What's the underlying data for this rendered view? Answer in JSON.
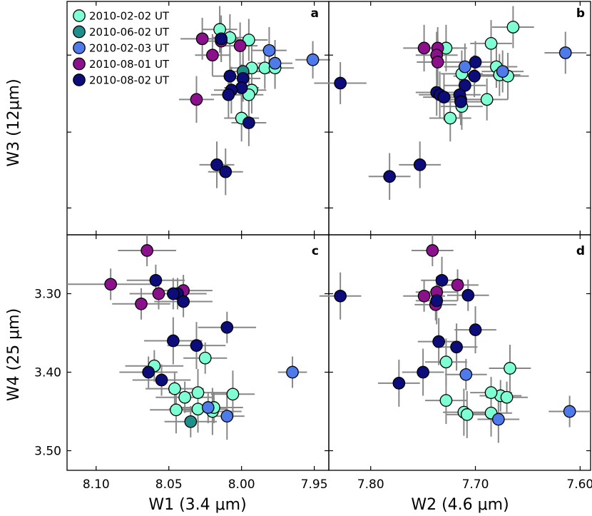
{
  "colors": {
    "2010-02-02 UT": "#7fffd4",
    "2010-06-02 UT": "#1f8f8c",
    "2010-02-03 UT": "#4f7bea",
    "2010-08-01 UT": "#8b108b",
    "2010-08-02 UT": "#0c0c7a",
    "errorbar": "#888888"
  },
  "legend": [
    "2010-02-02 UT",
    "2010-06-02 UT",
    "2010-02-03 UT",
    "2010-08-01 UT",
    "2010-08-02 UT"
  ],
  "labels": {
    "ylabel_top": "W3 (12μm)",
    "ylabel_bottom": "W4 (25 μm)",
    "xlabel_left": "W1 (3.4 μm)",
    "xlabel_right": "W2 (4.6 μm)"
  },
  "panels": [
    "a",
    "b",
    "c",
    "d"
  ],
  "chart_data": [
    {
      "panel": "a",
      "type": "scatter",
      "x_var": "W1",
      "y_var": "W3",
      "xlim": [
        8.12,
        7.94
      ],
      "xticks": [],
      "yticks": [],
      "ylim": [
        0,
        1
      ],
      "series": [
        {
          "name": "2010-02-02 UT",
          "points": [
            [
              8.015,
              0.88
            ],
            [
              8.008,
              0.845
            ],
            [
              7.995,
              0.835
            ],
            [
              7.993,
              0.715
            ],
            [
              7.984,
              0.715
            ],
            [
              7.977,
              0.715
            ],
            [
              7.993,
              0.62
            ],
            [
              7.995,
              0.6
            ],
            [
              8.0,
              0.5
            ]
          ],
          "xerr": [
            0.012,
            0.012,
            0.013,
            0.015,
            0.012,
            0.013,
            0.01,
            0.01,
            0.012
          ],
          "yerr": [
            0.1,
            0.1,
            0.09,
            0.1,
            0.09,
            0.09,
            0.1,
            0.1,
            0.1
          ]
        },
        {
          "name": "2010-06-02 UT",
          "points": [
            [
              7.999,
              0.7
            ]
          ],
          "xerr": [
            0.012
          ],
          "yerr": [
            0.09
          ]
        },
        {
          "name": "2010-02-03 UT",
          "points": [
            [
              7.981,
              0.79
            ],
            [
              7.977,
              0.735
            ],
            [
              7.951,
              0.75
            ]
          ],
          "xerr": [
            0.012,
            0.012,
            0.012
          ],
          "yerr": [
            0.1,
            0.1,
            0.08
          ]
        },
        {
          "name": "2010-08-01 UT",
          "points": [
            [
              8.027,
              0.84
            ],
            [
              8.014,
              0.83
            ],
            [
              8.001,
              0.81
            ],
            [
              8.02,
              0.77
            ],
            [
              8.031,
              0.58
            ]
          ],
          "xerr": [
            0.015,
            0.012,
            0.012,
            0.012,
            0.012
          ],
          "yerr": [
            0.09,
            0.09,
            0.1,
            0.09,
            0.1
          ]
        },
        {
          "name": "2010-08-02 UT",
          "points": [
            [
              8.014,
              0.84
            ],
            [
              8.008,
              0.68
            ],
            [
              7.999,
              0.67
            ],
            [
              8.0,
              0.63
            ],
            [
              8.007,
              0.62
            ],
            [
              8.009,
              0.6
            ],
            [
              7.995,
              0.48
            ],
            [
              8.017,
              0.3
            ],
            [
              8.011,
              0.27
            ]
          ],
          "xerr": [
            0.012,
            0.012,
            0.012,
            0.012,
            0.012,
            0.012,
            0.012,
            0.012,
            0.012
          ],
          "yerr": [
            0.1,
            0.1,
            0.1,
            0.1,
            0.1,
            0.1,
            0.1,
            0.1,
            0.1
          ]
        }
      ]
    },
    {
      "panel": "b",
      "type": "scatter",
      "x_var": "W2",
      "y_var": "W3",
      "xlim": [
        7.84,
        7.59
      ],
      "xticks": [],
      "yticks": [],
      "ylim": [
        0,
        1
      ],
      "series": [
        {
          "name": "2010-02-02 UT",
          "points": [
            [
              7.664,
              0.89
            ],
            [
              7.685,
              0.82
            ],
            [
              7.728,
              0.8
            ],
            [
              7.68,
              0.72
            ],
            [
              7.713,
              0.69
            ],
            [
              7.677,
              0.685
            ],
            [
              7.669,
              0.68
            ],
            [
              7.689,
              0.58
            ],
            [
              7.713,
              0.55
            ],
            [
              7.724,
              0.5
            ]
          ],
          "xerr": [
            0.02,
            0.02,
            0.02,
            0.02,
            0.02,
            0.02,
            0.02,
            0.02,
            0.02,
            0.02
          ],
          "yerr": [
            0.09,
            0.1,
            0.1,
            0.09,
            0.1,
            0.09,
            0.1,
            0.09,
            0.1,
            0.1
          ]
        },
        {
          "name": "2010-02-03 UT",
          "points": [
            [
              7.614,
              0.78
            ],
            [
              7.71,
              0.72
            ],
            [
              7.674,
              0.7
            ]
          ],
          "xerr": [
            0.02,
            0.02,
            0.02
          ],
          "yerr": [
            0.09,
            0.1,
            0.09
          ]
        },
        {
          "name": "2010-08-01 UT",
          "points": [
            [
              7.749,
              0.8
            ],
            [
              7.736,
              0.8
            ],
            [
              7.737,
              0.77
            ],
            [
              7.736,
              0.74
            ],
            [
              7.714,
              0.58
            ]
          ],
          "xerr": [
            0.02,
            0.02,
            0.02,
            0.02,
            0.02
          ],
          "yerr": [
            0.1,
            0.09,
            0.1,
            0.1,
            0.09
          ]
        },
        {
          "name": "2010-08-02 UT",
          "points": [
            [
              7.7,
              0.74
            ],
            [
              7.701,
              0.68
            ],
            [
              7.829,
              0.65
            ],
            [
              7.71,
              0.64
            ],
            [
              7.737,
              0.61
            ],
            [
              7.734,
              0.6
            ],
            [
              7.73,
              0.59
            ],
            [
              7.715,
              0.6
            ],
            [
              7.714,
              0.57
            ],
            [
              7.753,
              0.3
            ],
            [
              7.782,
              0.25
            ]
          ],
          "xerr": [
            0.02,
            0.02,
            0.025,
            0.02,
            0.02,
            0.02,
            0.02,
            0.02,
            0.02,
            0.02,
            0.02
          ],
          "yerr": [
            0.09,
            0.09,
            0.09,
            0.1,
            0.1,
            0.1,
            0.1,
            0.1,
            0.1,
            0.1,
            0.1
          ]
        }
      ]
    },
    {
      "panel": "c",
      "type": "scatter",
      "x_var": "W1",
      "y_var": "W4",
      "xlim": [
        8.12,
        7.94
      ],
      "xticks": [
        "8.10",
        "8.05",
        "8.00",
        "7.95"
      ],
      "yticks": [
        "3.30",
        "3.40",
        "3.50"
      ],
      "ylim": [
        3.525,
        3.225
      ],
      "series": [
        {
          "name": "2010-02-02 UT",
          "points": [
            [
              8.025,
              3.382
            ],
            [
              8.06,
              3.392
            ],
            [
              8.046,
              3.421
            ],
            [
              8.03,
              3.426
            ],
            [
              8.006,
              3.428
            ],
            [
              8.039,
              3.432
            ],
            [
              8.045,
              3.448
            ],
            [
              8.03,
              3.447
            ],
            [
              8.02,
              3.45
            ],
            [
              8.019,
              3.445
            ]
          ],
          "xerr": [
            0.015,
            0.02,
            0.02,
            0.02,
            0.015,
            0.02,
            0.018,
            0.02,
            0.02,
            0.02
          ],
          "yerr": [
            0.02,
            0.02,
            0.02,
            0.03,
            0.03,
            0.02,
            0.03,
            0.03,
            0.03,
            0.02
          ]
        },
        {
          "name": "2010-06-02 UT",
          "points": [
            [
              8.035,
              3.463
            ]
          ],
          "xerr": [
            0.018
          ],
          "yerr": [
            0.02
          ]
        },
        {
          "name": "2010-02-03 UT",
          "points": [
            [
              7.965,
              3.4
            ],
            [
              8.023,
              3.445
            ],
            [
              8.01,
              3.456
            ]
          ],
          "xerr": [
            0.01,
            0.02,
            0.012
          ],
          "yerr": [
            0.02,
            0.02,
            0.03
          ]
        },
        {
          "name": "2010-08-01 UT",
          "points": [
            [
              8.065,
              3.245
            ],
            [
              8.09,
              3.288
            ],
            [
              8.069,
              3.313
            ],
            [
              8.057,
              3.3
            ],
            [
              8.04,
              3.296
            ]
          ],
          "xerr": [
            0.02,
            0.03,
            0.02,
            0.02,
            0.02
          ],
          "yerr": [
            0.02,
            0.02,
            0.02,
            0.02,
            0.02
          ]
        },
        {
          "name": "2010-08-02 UT",
          "points": [
            [
              8.059,
              3.283
            ],
            [
              8.044,
              3.3
            ],
            [
              8.047,
              3.3
            ],
            [
              8.04,
              3.31
            ],
            [
              8.01,
              3.343
            ],
            [
              8.047,
              3.36
            ],
            [
              8.031,
              3.366
            ],
            [
              8.064,
              3.4
            ],
            [
              8.055,
              3.41
            ]
          ],
          "xerr": [
            0.02,
            0.02,
            0.02,
            0.02,
            0.02,
            0.02,
            0.02,
            0.02,
            0.02
          ],
          "yerr": [
            0.02,
            0.02,
            0.02,
            0.02,
            0.02,
            0.03,
            0.03,
            0.02,
            0.02
          ]
        }
      ]
    },
    {
      "panel": "d",
      "type": "scatter",
      "x_var": "W2",
      "y_var": "W4",
      "xlim": [
        7.84,
        7.59
      ],
      "xticks": [
        "7.80",
        "7.70",
        "7.60"
      ],
      "yticks": [
        "3.30",
        "3.40",
        "3.50"
      ],
      "ylim": [
        3.525,
        3.225
      ],
      "series": [
        {
          "name": "2010-02-02 UT",
          "points": [
            [
              7.728,
              3.387
            ],
            [
              7.667,
              3.395
            ],
            [
              7.676,
              3.43
            ],
            [
              7.685,
              3.426
            ],
            [
              7.67,
              3.432
            ],
            [
              7.728,
              3.436
            ],
            [
              7.711,
              3.451
            ],
            [
              7.708,
              3.454
            ],
            [
              7.685,
              3.452
            ]
          ],
          "xerr": [
            0.02,
            0.02,
            0.02,
            0.02,
            0.02,
            0.02,
            0.02,
            0.02,
            0.02
          ],
          "yerr": [
            0.03,
            0.03,
            0.02,
            0.02,
            0.02,
            0.03,
            0.03,
            0.03,
            0.03
          ]
        },
        {
          "name": "2010-02-03 UT",
          "points": [
            [
              7.709,
              3.403
            ],
            [
              7.61,
              3.45
            ],
            [
              7.678,
              3.46
            ]
          ],
          "xerr": [
            0.02,
            0.02,
            0.02
          ],
          "yerr": [
            0.02,
            0.02,
            0.03
          ]
        },
        {
          "name": "2010-08-01 UT",
          "points": [
            [
              7.741,
              3.245
            ],
            [
              7.749,
              3.303
            ],
            [
              7.737,
              3.298
            ],
            [
              7.738,
              3.314
            ],
            [
              7.717,
              3.289
            ]
          ],
          "xerr": [
            0.02,
            0.02,
            0.02,
            0.02,
            0.02
          ],
          "yerr": [
            0.02,
            0.02,
            0.02,
            0.02,
            0.02
          ]
        },
        {
          "name": "2010-08-02 UT",
          "points": [
            [
              7.829,
              3.303
            ],
            [
              7.737,
              3.309
            ],
            [
              7.732,
              3.283
            ],
            [
              7.707,
              3.302
            ],
            [
              7.7,
              3.346
            ],
            [
              7.735,
              3.361
            ],
            [
              7.718,
              3.368
            ],
            [
              7.75,
              3.4
            ],
            [
              7.773,
              3.414
            ]
          ],
          "xerr": [
            0.02,
            0.02,
            0.02,
            0.02,
            0.02,
            0.02,
            0.02,
            0.02,
            0.02
          ],
          "yerr": [
            0.03,
            0.03,
            0.03,
            0.02,
            0.03,
            0.03,
            0.03,
            0.03,
            0.03
          ]
        }
      ]
    }
  ]
}
